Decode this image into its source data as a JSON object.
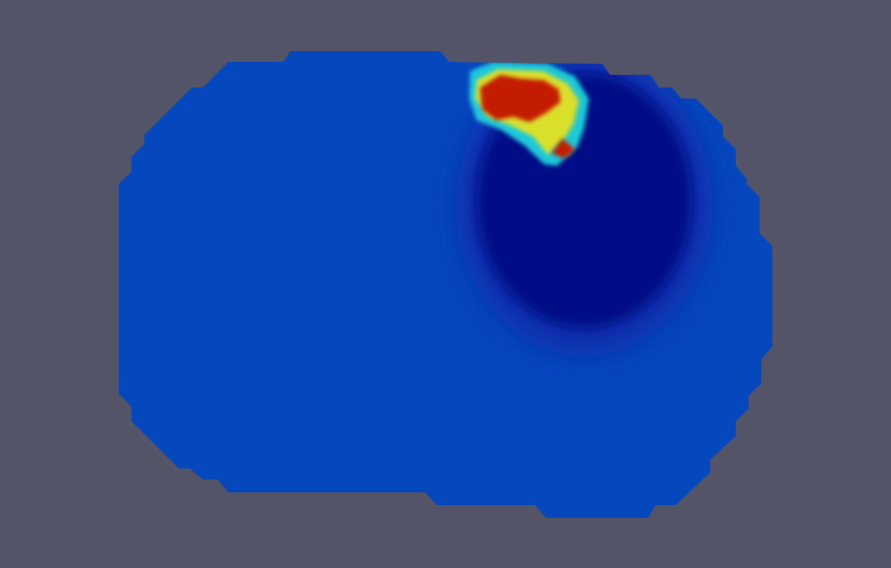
{
  "viewport": {
    "background_color": "#535468",
    "colormap": "jet",
    "colors": {
      "domain_base": "#0547bd",
      "cold_region": "#020a86",
      "cold_region_edge": "#0a2fae",
      "hot_outer": "#1fc9d9",
      "hot_mid": "#d9e02a",
      "hot_core": "#c41a06"
    }
  }
}
